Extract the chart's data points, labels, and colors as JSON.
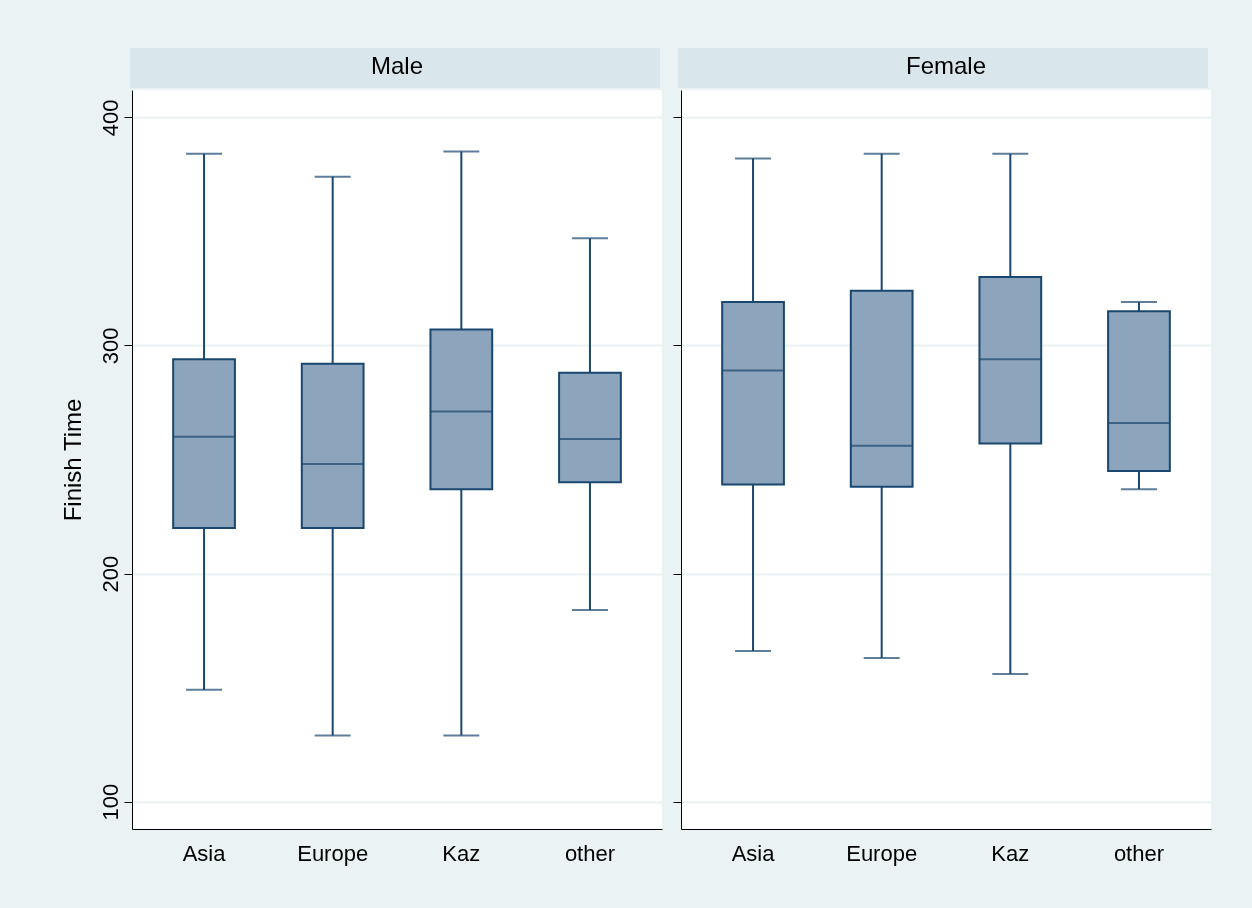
{
  "chart_data": [
    {
      "type": "box",
      "title": "Male",
      "ylabel": "Finish Time",
      "categories": [
        "Asia",
        "Europe",
        "Kaz",
        "other"
      ],
      "ylim": [
        88,
        412
      ],
      "yticks": [
        100,
        200,
        300,
        400
      ],
      "grid": "y",
      "series": [
        {
          "color": "#8ca4bc",
          "boxes": [
            {
              "low": 149,
              "q1": 220,
              "median": 260,
              "q3": 294,
              "high": 384
            },
            {
              "low": 129,
              "q1": 220,
              "median": 248,
              "q3": 292,
              "high": 374
            },
            {
              "low": 129,
              "q1": 237,
              "median": 271,
              "q3": 307,
              "high": 385
            },
            {
              "low": 184,
              "q1": 240,
              "median": 259,
              "q3": 288,
              "high": 347
            }
          ]
        }
      ]
    },
    {
      "type": "box",
      "title": "Female",
      "categories": [
        "Asia",
        "Europe",
        "Kaz",
        "other"
      ],
      "ylim": [
        88,
        412
      ],
      "yticks": [
        100,
        200,
        300,
        400
      ],
      "grid": "y",
      "tick_labels": "x",
      "series": [
        {
          "color": "#8ca4bc",
          "boxes": [
            {
              "low": 166,
              "q1": 239,
              "median": 289,
              "q3": 319,
              "high": 382
            },
            {
              "low": 163,
              "q1": 238,
              "median": 256,
              "q3": 324,
              "high": 384
            },
            {
              "low": 156,
              "q1": 257,
              "median": 294,
              "q3": 330,
              "high": 384
            },
            {
              "low": 237,
              "q1": 245,
              "median": 266,
              "q3": 315,
              "high": 319
            }
          ]
        }
      ]
    }
  ]
}
